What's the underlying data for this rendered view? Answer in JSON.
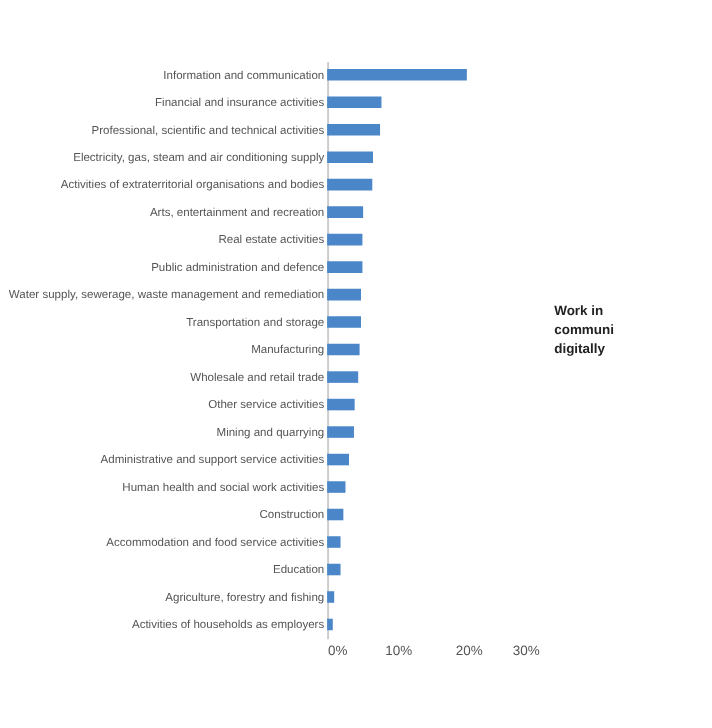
{
  "chart_data": {
    "type": "bar",
    "orientation": "horizontal",
    "color": "#4a86c8",
    "categories": [
      "Information and communication",
      "Financial and insurance activities",
      "Professional, scientific and technical activities",
      "Electricity, gas, steam and air conditioning supply",
      "Activities of extraterritorial organisations and bodies",
      "Arts, entertainment and recreation",
      "Real estate activities",
      "Public administration and defence",
      "Water supply, sewerage, waste management and remediation",
      "Transportation and storage",
      "Manufacturing",
      "Wholesale and retail trade",
      "Other service activities",
      "Mining and quarrying",
      "Administrative and support service activities",
      "Human health and social work activities",
      "Construction",
      "Accommodation and food service activities",
      "Education",
      "Agriculture, forestry and fishing",
      "Activities of households as employers"
    ],
    "values": [
      19.8,
      7.7,
      7.5,
      6.5,
      6.4,
      5.1,
      5.0,
      5.0,
      4.8,
      4.8,
      4.6,
      4.4,
      3.9,
      3.8,
      3.1,
      2.6,
      2.3,
      1.9,
      1.9,
      1.0,
      0.8
    ],
    "xlim": [
      0,
      30
    ],
    "xticks": [
      {
        "value": 0,
        "label": "0%"
      },
      {
        "value": 10,
        "label": "10%"
      },
      {
        "value": 20,
        "label": "20%"
      },
      {
        "value": 30,
        "label": "30%"
      }
    ],
    "annotations": [
      "Work in",
      "communi",
      "digitally"
    ]
  }
}
